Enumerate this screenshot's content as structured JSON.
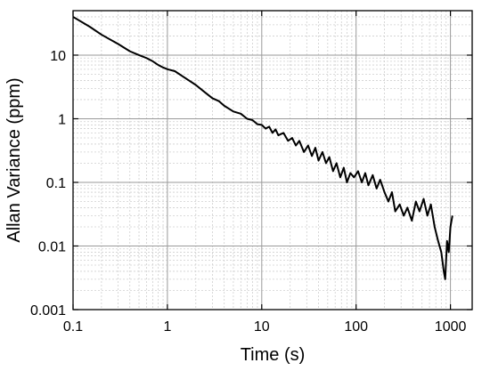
{
  "chart_data": {
    "type": "line",
    "x_label": "Time (s)",
    "y_label": "Allan Variance (ppm)",
    "log_x": true,
    "log_y": true,
    "grid": true,
    "minor_grid": true,
    "xlim": [
      0.1,
      1700
    ],
    "ylim": [
      0.001,
      50
    ],
    "xticks": [
      0.1,
      1,
      10,
      100,
      1000
    ],
    "yticks": [
      0.001,
      0.01,
      0.1,
      1,
      10
    ],
    "x": [
      0.1,
      0.15,
      0.2,
      0.3,
      0.4,
      0.5,
      0.6,
      0.7,
      0.8,
      0.9,
      1,
      1.2,
      1.5,
      2,
      2.5,
      3,
      3.5,
      4,
      5,
      6,
      7,
      8,
      9,
      10,
      11,
      12,
      13,
      14,
      15,
      17,
      19,
      21,
      23,
      25,
      28,
      31,
      34,
      37,
      40,
      44,
      48,
      52,
      57,
      62,
      68,
      74,
      80,
      87,
      95,
      105,
      115,
      125,
      135,
      150,
      165,
      180,
      200,
      220,
      240,
      260,
      290,
      320,
      350,
      390,
      430,
      470,
      520,
      570,
      620,
      680,
      740,
      800,
      850,
      880,
      920,
      960,
      1000,
      1050
    ],
    "series": [
      {
        "color": "#000000",
        "values": [
          40,
          28,
          21,
          15,
          11.5,
          10,
          9,
          8,
          7,
          6.4,
          6,
          5.6,
          4.5,
          3.4,
          2.6,
          2.1,
          1.9,
          1.6,
          1.3,
          1.2,
          1.0,
          0.95,
          0.82,
          0.8,
          0.7,
          0.75,
          0.6,
          0.68,
          0.55,
          0.6,
          0.45,
          0.5,
          0.38,
          0.45,
          0.3,
          0.38,
          0.26,
          0.35,
          0.22,
          0.3,
          0.2,
          0.25,
          0.15,
          0.2,
          0.12,
          0.17,
          0.1,
          0.14,
          0.12,
          0.15,
          0.1,
          0.14,
          0.09,
          0.13,
          0.08,
          0.11,
          0.07,
          0.05,
          0.07,
          0.035,
          0.045,
          0.03,
          0.04,
          0.025,
          0.05,
          0.035,
          0.055,
          0.03,
          0.045,
          0.02,
          0.012,
          0.008,
          0.004,
          0.003,
          0.012,
          0.008,
          0.02,
          0.03
        ]
      }
    ]
  }
}
